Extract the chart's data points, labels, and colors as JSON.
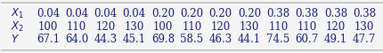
{
  "rows": [
    {
      "label": "$X_1$",
      "values": [
        "0.04",
        "0.04",
        "0.04",
        "0.04",
        "0.20",
        "0.20",
        "0.20",
        "0.20",
        "0.38",
        "0.38",
        "0.38",
        "0.38"
      ]
    },
    {
      "label": "$X_2$",
      "values": [
        "100",
        "110",
        "120",
        "130",
        "100",
        "110",
        "120",
        "130",
        "110",
        "110",
        "120",
        "130"
      ]
    },
    {
      "label": "$Y$",
      "values": [
        "67.1",
        "64.0",
        "44.3",
        "45.1",
        "69.8",
        "58.5",
        "46.3",
        "44.1",
        "74.5",
        "60.7",
        "49.1",
        "47.7"
      ]
    }
  ],
  "background_color": "#f5f5f5",
  "border_color": "#aaaaaa",
  "text_color": "#1a237e",
  "font_size": 8.5,
  "fig_width": 4.31,
  "fig_height": 0.6
}
